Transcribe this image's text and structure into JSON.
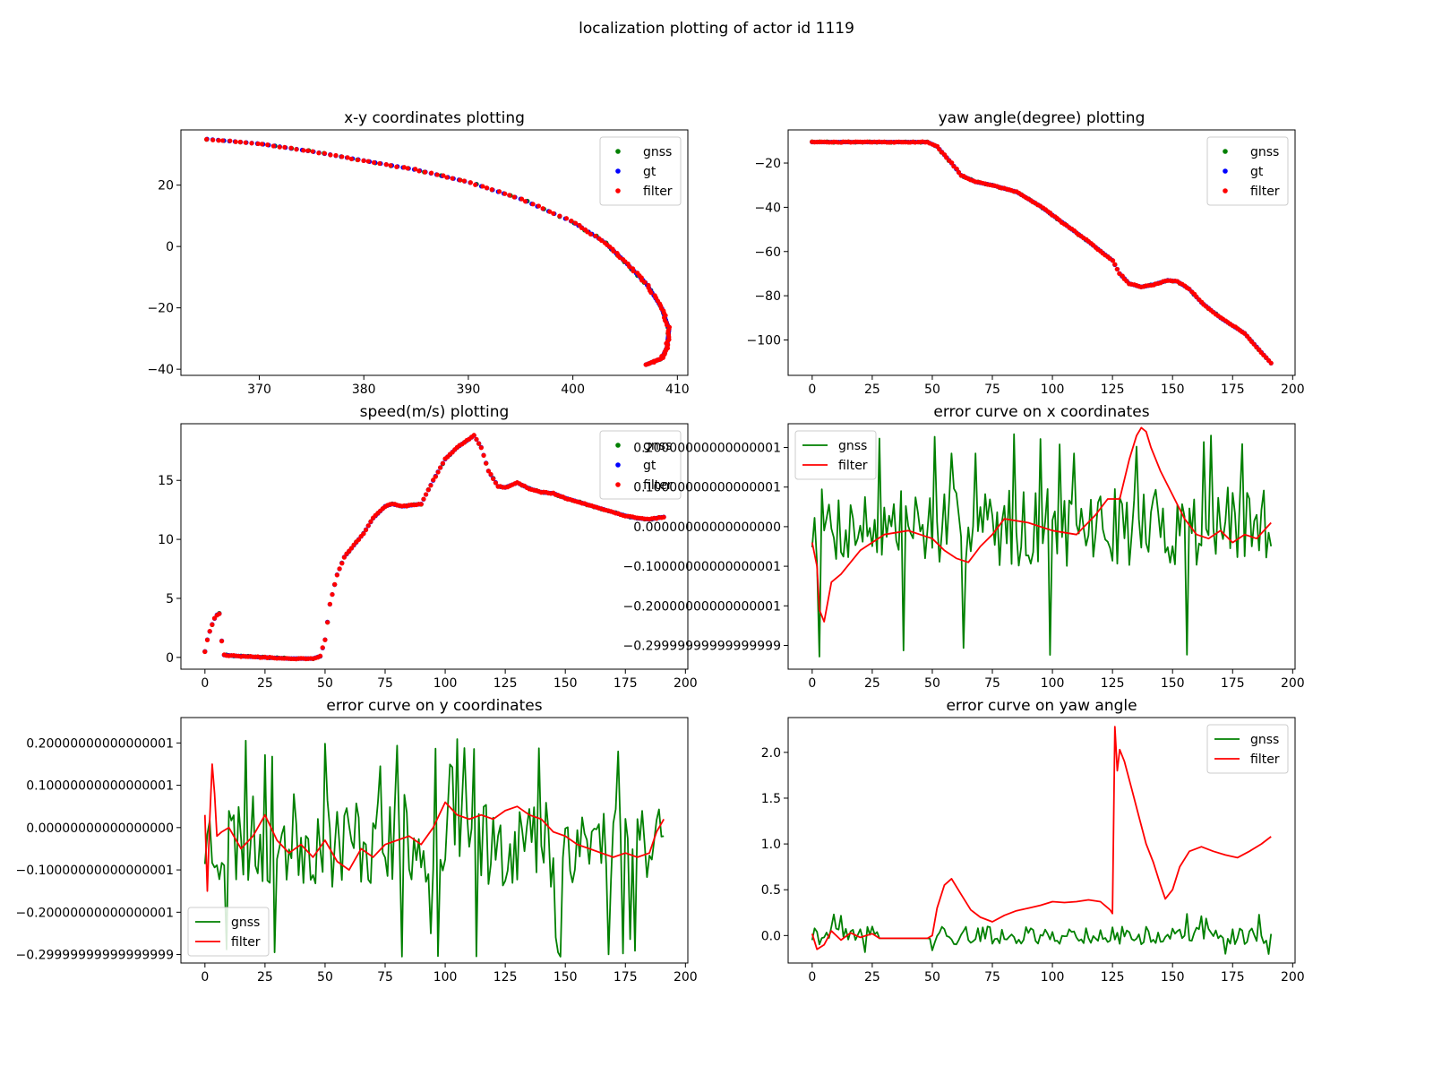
{
  "figure": {
    "suptitle": "localization plotting of actor id 1119"
  },
  "colors": {
    "gnss": "#008000",
    "gt": "#0000ff",
    "filter": "#ff0000"
  },
  "chart_data": [
    {
      "key": "xy",
      "type": "scatter",
      "title": "x-y coordinates plotting",
      "xlim": [
        362.5,
        411.0
      ],
      "ylim": [
        -42.0,
        38.0
      ],
      "xticks": [
        370,
        380,
        390,
        400,
        410
      ],
      "yticks": [
        -40,
        -20,
        0,
        20
      ],
      "legend": "top-right",
      "grid": false,
      "xlabel": "",
      "ylabel": "",
      "path": {
        "x": [
          365.0,
          370.0,
          375.0,
          380.0,
          385.0,
          390.0,
          395.0,
          400.0,
          403.0,
          405.0,
          407.0,
          408.5,
          409.2,
          409.0,
          408.5,
          407.0
        ],
        "y": [
          35.0,
          33.5,
          31.0,
          28.0,
          25.0,
          21.0,
          15.5,
          8.0,
          1.5,
          -5.0,
          -12.0,
          -20.0,
          -27.0,
          -33.0,
          -36.5,
          -38.5
        ]
      },
      "series": [
        {
          "name": "gnss",
          "color": "#008000"
        },
        {
          "name": "gt",
          "color": "#0000ff"
        },
        {
          "name": "filter",
          "color": "#ff0000"
        }
      ]
    },
    {
      "key": "yaw",
      "type": "scatter",
      "title": "yaw angle(degree) plotting",
      "xlim": [
        -10,
        201
      ],
      "ylim": [
        -116,
        -5
      ],
      "xticks": [
        0,
        25,
        50,
        75,
        100,
        125,
        150,
        175,
        200
      ],
      "yticks": [
        -100,
        -80,
        -60,
        -40,
        -20
      ],
      "legend": "top-right",
      "grid": false,
      "xlabel": "",
      "ylabel": "",
      "x": [
        0,
        48,
        52,
        58,
        62,
        68,
        75,
        85,
        95,
        105,
        115,
        122,
        125,
        128,
        132,
        137,
        142,
        148,
        152,
        157,
        162,
        170,
        180,
        191
      ],
      "y": [
        -10.5,
        -10.5,
        -12.5,
        -20.0,
        -25.5,
        -28.5,
        -30.0,
        -33.0,
        -39.5,
        -47.5,
        -55.5,
        -61.5,
        -64.0,
        -70.0,
        -74.5,
        -76.0,
        -75.0,
        -73.0,
        -73.5,
        -77.0,
        -83.0,
        -90.0,
        -97.0,
        -110.5
      ],
      "series": [
        {
          "name": "gnss",
          "color": "#008000"
        },
        {
          "name": "gt",
          "color": "#0000ff"
        },
        {
          "name": "filter",
          "color": "#ff0000"
        }
      ]
    },
    {
      "key": "speed",
      "type": "scatter",
      "title": "speed(m/s) plotting",
      "xlim": [
        -10,
        201
      ],
      "ylim": [
        -1.0,
        19.8
      ],
      "xticks": [
        0,
        25,
        50,
        75,
        100,
        125,
        150,
        175,
        200
      ],
      "yticks": [
        0,
        5,
        10,
        15
      ],
      "legend": "top-right",
      "grid": false,
      "xlabel": "",
      "ylabel": "",
      "x": [
        0,
        1,
        2,
        3,
        4,
        5,
        6,
        7,
        8,
        15,
        25,
        35,
        45,
        48,
        50,
        52,
        55,
        58,
        62,
        66,
        70,
        75,
        78,
        82,
        86,
        90,
        95,
        100,
        105,
        110,
        112,
        115,
        118,
        122,
        125,
        130,
        135,
        140,
        145,
        150,
        155,
        160,
        165,
        170,
        175,
        180,
        185,
        191
      ],
      "y": [
        0.5,
        1.5,
        2.2,
        2.8,
        3.3,
        3.6,
        3.7,
        1.4,
        0.2,
        0.1,
        0.0,
        -0.1,
        -0.1,
        0.1,
        1.5,
        4.5,
        7.0,
        8.5,
        9.5,
        10.5,
        11.8,
        12.8,
        13.0,
        12.8,
        12.9,
        13.0,
        15.0,
        16.8,
        17.8,
        18.5,
        18.8,
        17.8,
        15.8,
        14.5,
        14.4,
        14.8,
        14.3,
        14.0,
        13.9,
        13.5,
        13.2,
        12.9,
        12.6,
        12.3,
        12.0,
        11.8,
        11.7,
        11.9
      ],
      "series": [
        {
          "name": "gnss",
          "color": "#008000"
        },
        {
          "name": "gt",
          "color": "#0000ff"
        },
        {
          "name": "filter",
          "color": "#ff0000"
        }
      ]
    },
    {
      "key": "errx",
      "type": "line",
      "title": "error curve on x coordinates",
      "xlim": [
        -10,
        201
      ],
      "ylim": [
        -0.36,
        0.26
      ],
      "xticks": [
        0,
        25,
        50,
        75,
        100,
        125,
        150,
        175,
        200
      ],
      "yticks": [
        -0.3,
        -0.2,
        -0.1,
        0.0,
        0.1,
        0.2
      ],
      "legend": "top-left",
      "grid": false,
      "xlabel": "",
      "ylabel": "",
      "series": [
        {
          "name": "gnss",
          "color": "#008000",
          "seed": 7,
          "n": 192,
          "amp": 0.1,
          "bias": 0.0,
          "min": -0.33,
          "max": 0.24,
          "hold": []
        },
        {
          "name": "filter",
          "color": "#ff0000",
          "x": [
            0,
            2,
            3,
            5,
            8,
            12,
            20,
            30,
            40,
            50,
            55,
            60,
            65,
            70,
            75,
            80,
            90,
            100,
            110,
            118,
            123,
            128,
            132,
            135,
            137,
            139,
            141,
            145,
            150,
            155,
            160,
            165,
            170,
            175,
            180,
            185,
            191
          ],
          "y": [
            -0.04,
            -0.1,
            -0.21,
            -0.24,
            -0.14,
            -0.12,
            -0.06,
            -0.02,
            -0.01,
            -0.03,
            -0.06,
            -0.08,
            -0.09,
            -0.05,
            -0.02,
            0.02,
            0.01,
            -0.01,
            -0.02,
            0.03,
            0.07,
            0.07,
            0.17,
            0.23,
            0.25,
            0.24,
            0.2,
            0.14,
            0.08,
            0.02,
            -0.02,
            -0.03,
            -0.01,
            -0.04,
            -0.02,
            -0.03,
            0.01
          ]
        }
      ]
    },
    {
      "key": "erry",
      "type": "line",
      "title": "error curve on y coordinates",
      "xlim": [
        -10,
        201
      ],
      "ylim": [
        -0.32,
        0.26
      ],
      "xticks": [
        0,
        25,
        50,
        75,
        100,
        125,
        150,
        175,
        200
      ],
      "yticks": [
        -0.3,
        -0.2,
        -0.1,
        0.0,
        0.1,
        0.2
      ],
      "legend": "bottom-left",
      "grid": false,
      "xlabel": "",
      "ylabel": "",
      "series": [
        {
          "name": "gnss",
          "color": "#008000",
          "seed": 23,
          "n": 192,
          "amp": 0.11,
          "bias": -0.03,
          "min": -0.305,
          "max": 0.24,
          "hold": []
        },
        {
          "name": "filter",
          "color": "#ff0000",
          "x": [
            0,
            1,
            2,
            3,
            4,
            5,
            7,
            10,
            15,
            20,
            25,
            30,
            35,
            40,
            45,
            50,
            55,
            60,
            65,
            70,
            75,
            80,
            85,
            90,
            95,
            100,
            105,
            110,
            115,
            120,
            125,
            130,
            135,
            140,
            145,
            150,
            155,
            160,
            165,
            170,
            175,
            180,
            185,
            188,
            191
          ],
          "y": [
            0.03,
            -0.15,
            0.02,
            0.15,
            0.08,
            -0.02,
            -0.01,
            0.0,
            -0.05,
            -0.02,
            0.03,
            -0.03,
            -0.06,
            -0.04,
            -0.07,
            -0.03,
            -0.08,
            -0.1,
            -0.05,
            -0.07,
            -0.04,
            -0.03,
            -0.02,
            -0.04,
            0.0,
            0.06,
            0.03,
            0.02,
            0.03,
            0.02,
            0.04,
            0.05,
            0.03,
            0.02,
            -0.01,
            -0.02,
            -0.04,
            -0.05,
            -0.06,
            -0.07,
            -0.06,
            -0.07,
            -0.06,
            -0.01,
            0.02
          ]
        }
      ]
    },
    {
      "key": "erryaw",
      "type": "line",
      "title": "error curve on yaw angle",
      "xlim": [
        -10,
        201
      ],
      "ylim": [
        -0.3,
        2.38
      ],
      "xticks": [
        0,
        25,
        50,
        75,
        100,
        125,
        150,
        175,
        200
      ],
      "yticks": [
        0.0,
        0.5,
        1.0,
        1.5,
        2.0
      ],
      "legend": "top-right",
      "grid": false,
      "xlabel": "",
      "ylabel": "",
      "series": [
        {
          "name": "gnss",
          "color": "#008000",
          "seed": 41,
          "n": 192,
          "amp": 0.1,
          "bias": 0.0,
          "min": -0.22,
          "max": 0.26,
          "hold": [
            [
              28,
              48,
              -0.03
            ]
          ]
        },
        {
          "name": "filter",
          "color": "#ff0000",
          "x": [
            0,
            2,
            5,
            8,
            12,
            16,
            20,
            25,
            28,
            35,
            42,
            48,
            50,
            52,
            55,
            58,
            62,
            66,
            70,
            75,
            80,
            85,
            90,
            95,
            100,
            105,
            110,
            115,
            120,
            124,
            125,
            126,
            127,
            128,
            130,
            133,
            136,
            139,
            142,
            145,
            147,
            150,
            153,
            157,
            162,
            167,
            172,
            177,
            182,
            187,
            191
          ],
          "y": [
            0.02,
            -0.15,
            -0.1,
            0.05,
            -0.05,
            0.03,
            -0.02,
            0.02,
            -0.03,
            -0.03,
            -0.03,
            -0.03,
            0.0,
            0.3,
            0.55,
            0.62,
            0.45,
            0.28,
            0.2,
            0.15,
            0.22,
            0.27,
            0.3,
            0.33,
            0.37,
            0.36,
            0.37,
            0.39,
            0.37,
            0.28,
            0.24,
            2.28,
            1.8,
            2.03,
            1.9,
            1.6,
            1.3,
            1.0,
            0.8,
            0.55,
            0.4,
            0.5,
            0.75,
            0.92,
            0.97,
            0.92,
            0.88,
            0.85,
            0.92,
            1.0,
            1.08
          ]
        }
      ]
    }
  ]
}
